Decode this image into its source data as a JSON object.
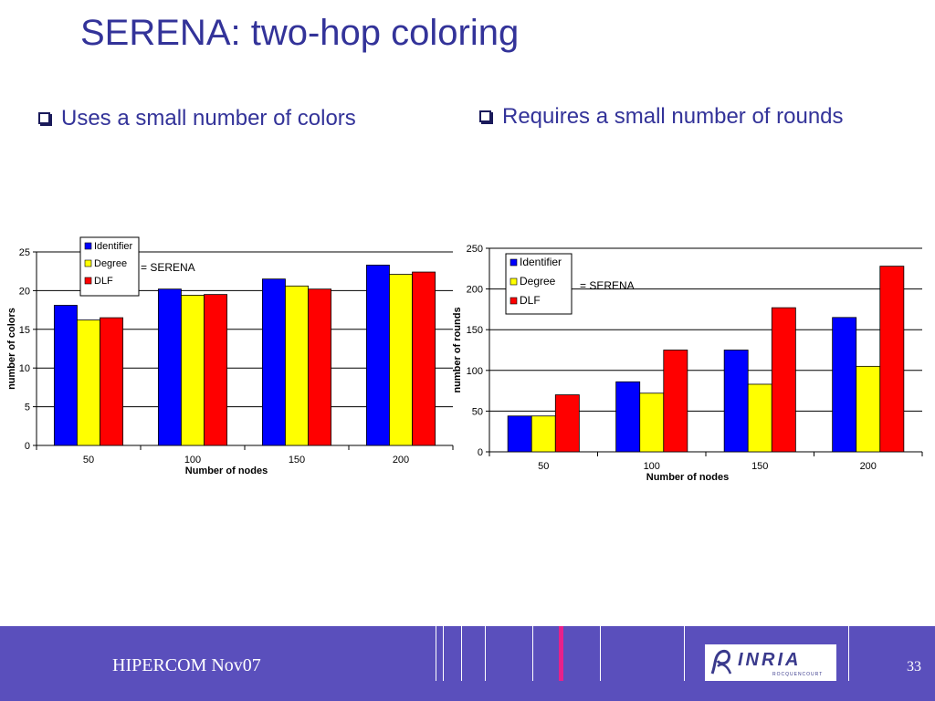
{
  "slide": {
    "title": "SERENA: two-hop coloring",
    "bullet_left": "Uses a small number of colors",
    "bullet_right": "Requires a small number of rounds"
  },
  "footer": {
    "text": "HIPERCOM  Nov07",
    "page": "33",
    "logo": "INRIA",
    "logo_sub": "ROCQUENCOURT"
  },
  "chart_data": [
    {
      "type": "bar",
      "categories": [
        "50",
        "100",
        "150",
        "200"
      ],
      "series": [
        {
          "name": "Identifier",
          "values": [
            18.1,
            20.2,
            21.5,
            23.3
          ],
          "color": "#0000ff"
        },
        {
          "name": "Degree",
          "values": [
            16.2,
            19.4,
            20.6,
            22.1
          ],
          "color": "#ffff00"
        },
        {
          "name": "DLF",
          "values": [
            16.5,
            19.5,
            20.2,
            22.4
          ],
          "color": "#ff0000"
        }
      ],
      "xlabel": "Number of nodes",
      "ylabel": "number of colors",
      "ylim": [
        0,
        25
      ],
      "yticks": [
        0,
        5,
        10,
        15,
        20,
        25
      ],
      "grid": true,
      "legend": "top-left",
      "annotation": "= SERENA"
    },
    {
      "type": "bar",
      "categories": [
        "50",
        "100",
        "150",
        "200"
      ],
      "series": [
        {
          "name": "Identifier",
          "values": [
            44,
            86,
            125,
            165
          ],
          "color": "#0000ff"
        },
        {
          "name": "Degree",
          "values": [
            44,
            72,
            83,
            105
          ],
          "color": "#ffff00"
        },
        {
          "name": "DLF",
          "values": [
            70,
            125,
            177,
            228
          ],
          "color": "#ff0000"
        }
      ],
      "xlabel": "Number of nodes",
      "ylabel": "number of rounds",
      "ylim": [
        0,
        250
      ],
      "yticks": [
        0,
        50,
        100,
        150,
        200,
        250
      ],
      "grid": true,
      "legend": "top-left",
      "annotation": "= SERENA"
    }
  ]
}
